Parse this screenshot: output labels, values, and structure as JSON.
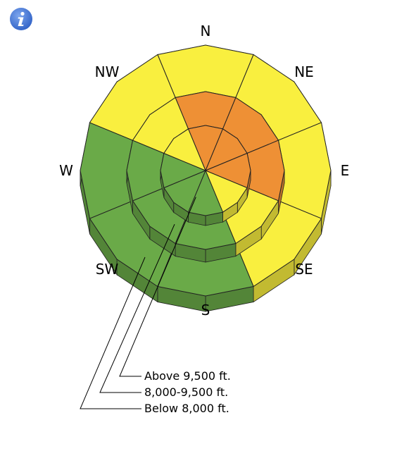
{
  "info_icon": "info-icon",
  "colors": {
    "low": "#6aaa48",
    "moderate": "#f9ef3f",
    "considerable": "#ee9035"
  },
  "directions": [
    "N",
    "NE",
    "E",
    "SE",
    "S",
    "SW",
    "W",
    "NW"
  ],
  "elevations": {
    "upper": "Above 9,500 ft.",
    "middle": "8,000-9,500 ft.",
    "lower": "Below 8,000 ft."
  },
  "danger_levels": {
    "upper": {
      "N": "considerable",
      "NE": "considerable",
      "E": "considerable",
      "SE": "moderate",
      "S": "low",
      "SW": "low",
      "W": "low",
      "NW": "moderate"
    },
    "middle": {
      "N": "considerable",
      "NE": "considerable",
      "E": "considerable",
      "SE": "moderate",
      "S": "low",
      "SW": "low",
      "W": "low",
      "NW": "moderate"
    },
    "lower": {
      "N": "moderate",
      "NE": "moderate",
      "E": "moderate",
      "SE": "moderate",
      "S": "low",
      "SW": "low",
      "W": "low",
      "NW": "moderate"
    }
  }
}
